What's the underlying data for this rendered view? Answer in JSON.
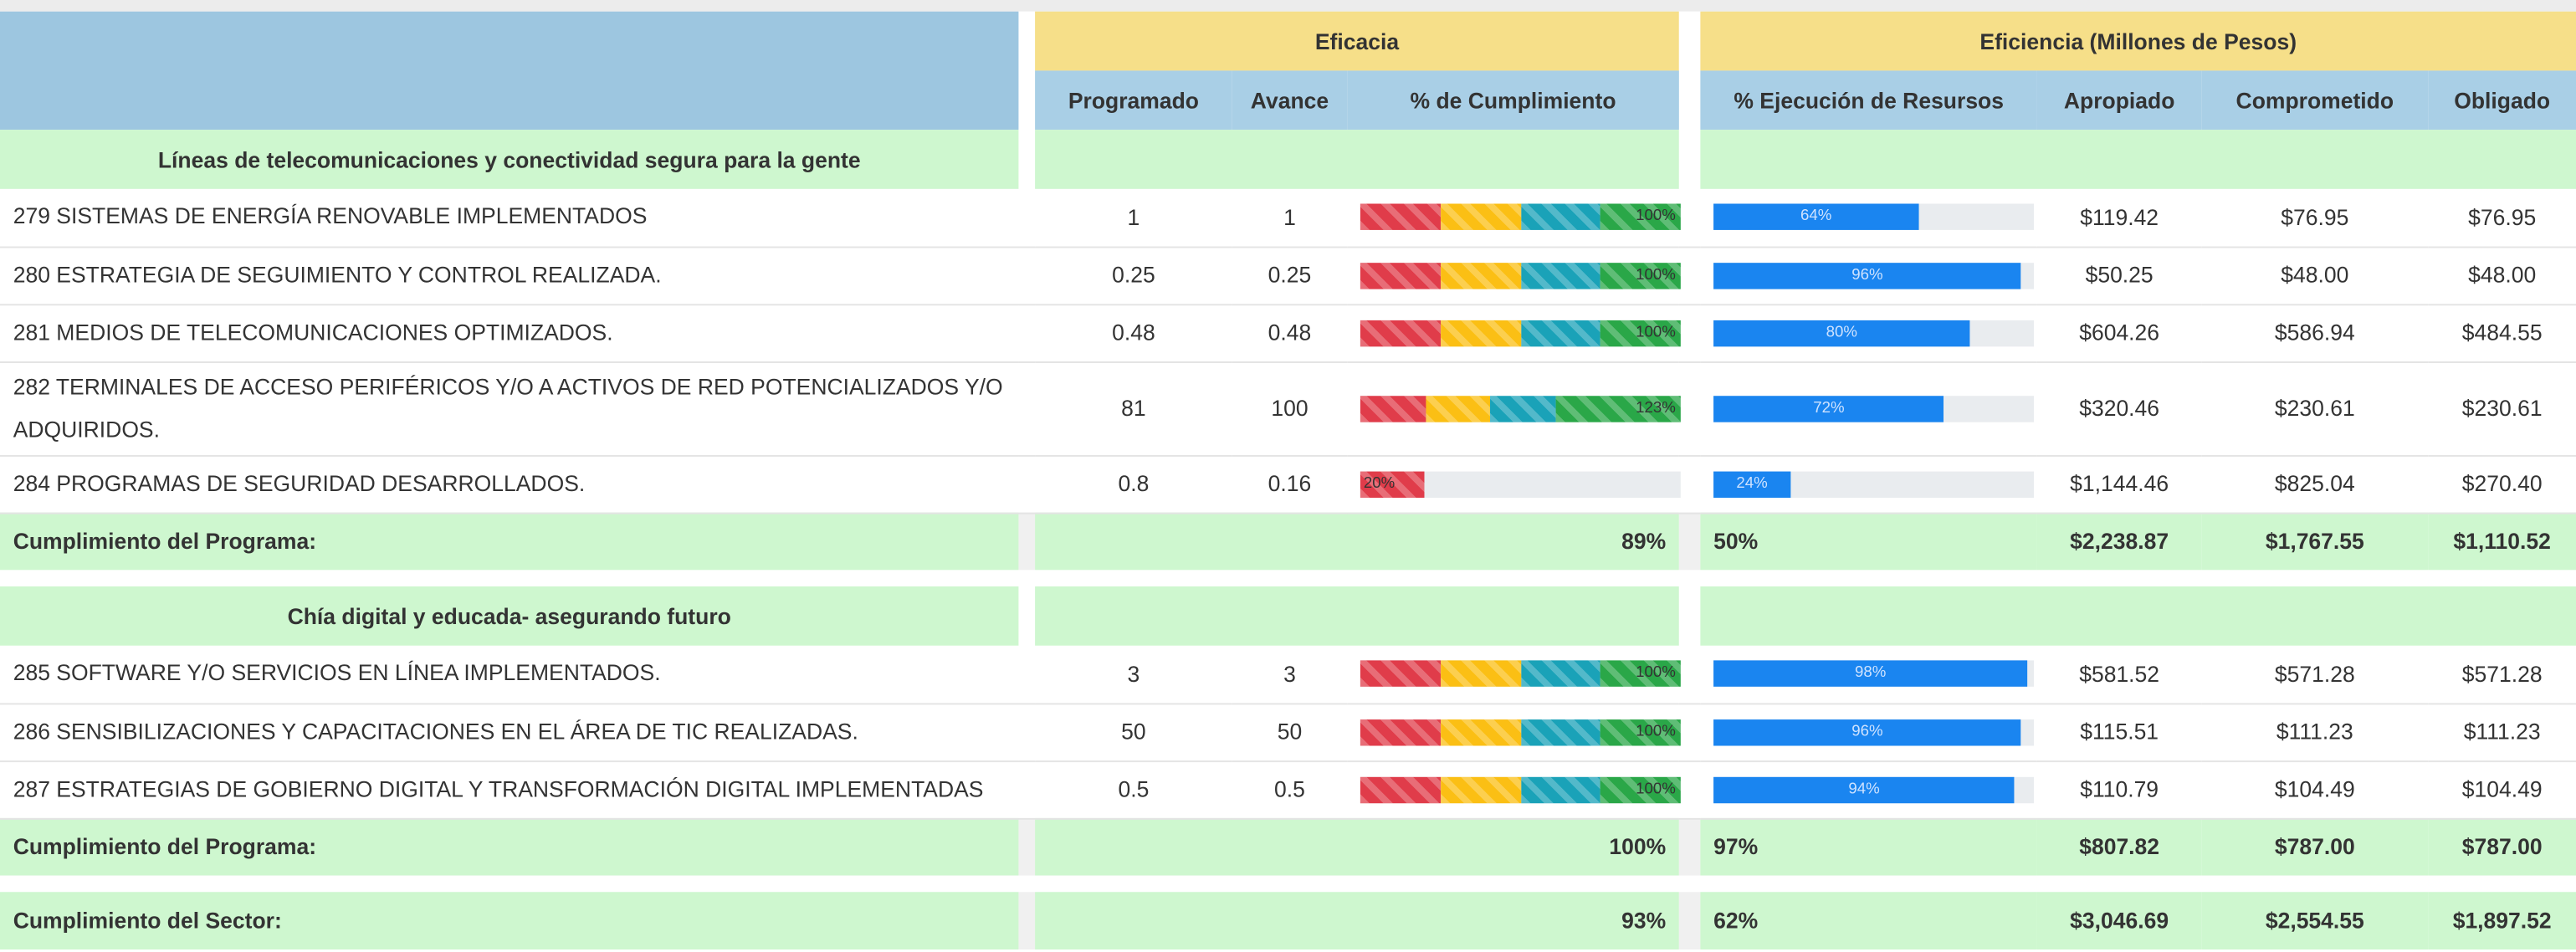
{
  "header": {
    "group_eficacia": "Eficacia",
    "group_eficiencia": "Eficiencia (Millones de Pesos)",
    "columns": [
      "Programado",
      "Avance",
      "% de Cumplimiento",
      "% Ejecución de Resursos",
      "Apropiado",
      "Comprometido",
      "Obligado"
    ]
  },
  "sections": [
    {
      "title": "Líneas de telecomunicaciones y conectividad segura para la gente",
      "rows": [
        {
          "name": "279 SISTEMAS DE ENERGÍA RENOVABLE IMPLEMENTADOS",
          "programado": 1,
          "avance": 1,
          "cumplimiento": 100,
          "cumplimiento_label": "100%",
          "ejecucion": 64,
          "ejecucion_label": "64%",
          "apropiado": "$119.42",
          "comprometido": "$76.95",
          "obligado": "$76.95"
        },
        {
          "name": "280 ESTRATEGIA DE SEGUIMIENTO Y CONTROL REALIZADA.",
          "programado": 0.25,
          "avance": 0.25,
          "cumplimiento": 100,
          "cumplimiento_label": "100%",
          "ejecucion": 96,
          "ejecucion_label": "96%",
          "apropiado": "$50.25",
          "comprometido": "$48.00",
          "obligado": "$48.00"
        },
        {
          "name": "281 MEDIOS DE TELECOMUNICACIONES OPTIMIZADOS.",
          "programado": 0.48,
          "avance": 0.48,
          "cumplimiento": 100,
          "cumplimiento_label": "100%",
          "ejecucion": 80,
          "ejecucion_label": "80%",
          "apropiado": "$604.26",
          "comprometido": "$586.94",
          "obligado": "$484.55"
        },
        {
          "name": "282 TERMINALES DE ACCESO PERIFÉRICOS Y/O A ACTIVOS DE RED POTENCIALIZADOS Y/O ADQUIRIDOS.",
          "programado": 81,
          "avance": 100,
          "cumplimiento": 123,
          "cumplimiento_label": "123%",
          "ejecucion": 72,
          "ejecucion_label": "72%",
          "apropiado": "$320.46",
          "comprometido": "$230.61",
          "obligado": "$230.61"
        },
        {
          "name": "284 PROGRAMAS DE SEGURIDAD DESARROLLADOS.",
          "programado": 0.8,
          "avance": 0.16,
          "cumplimiento": 20,
          "cumplimiento_label": "20%",
          "ejecucion": 24,
          "ejecucion_label": "24%",
          "apropiado": "$1,144.46",
          "comprometido": "$825.04",
          "obligado": "$270.40"
        }
      ],
      "total": {
        "label": "Cumplimiento del Programa:",
        "cumplimiento": "89%",
        "ejecucion": "50%",
        "apropiado": "$2,238.87",
        "comprometido": "$1,767.55",
        "obligado": "$1,110.52"
      }
    },
    {
      "title": "Chía digital y educada- asegurando futuro",
      "rows": [
        {
          "name": "285 SOFTWARE Y/O SERVICIOS EN LÍNEA IMPLEMENTADOS.",
          "programado": 3,
          "avance": 3,
          "cumplimiento": 100,
          "cumplimiento_label": "100%",
          "ejecucion": 98,
          "ejecucion_label": "98%",
          "apropiado": "$581.52",
          "comprometido": "$571.28",
          "obligado": "$571.28"
        },
        {
          "name": "286 SENSIBILIZACIONES Y CAPACITACIONES EN EL ÁREA DE TIC REALIZADAS.",
          "programado": 50,
          "avance": 50,
          "cumplimiento": 100,
          "cumplimiento_label": "100%",
          "ejecucion": 96,
          "ejecucion_label": "96%",
          "apropiado": "$115.51",
          "comprometido": "$111.23",
          "obligado": "$111.23"
        },
        {
          "name": "287 ESTRATEGIAS DE GOBIERNO DIGITAL Y TRANSFORMACIÓN DIGITAL IMPLEMENTADAS",
          "programado": 0.5,
          "avance": 0.5,
          "cumplimiento": 100,
          "cumplimiento_label": "100%",
          "ejecucion": 94,
          "ejecucion_label": "94%",
          "apropiado": "$110.79",
          "comprometido": "$104.49",
          "obligado": "$104.49"
        }
      ],
      "total": {
        "label": "Cumplimiento del Programa:",
        "cumplimiento": "100%",
        "ejecucion": "97%",
        "apropiado": "$807.82",
        "comprometido": "$787.00",
        "obligado": "$787.00"
      }
    }
  ],
  "sector": {
    "label": "Cumplimiento del Sector:",
    "cumplimiento": "93%",
    "ejecucion": "62%",
    "apropiado": "$3,046.69",
    "comprometido": "$2,554.55",
    "obligado": "$1,897.52"
  }
}
